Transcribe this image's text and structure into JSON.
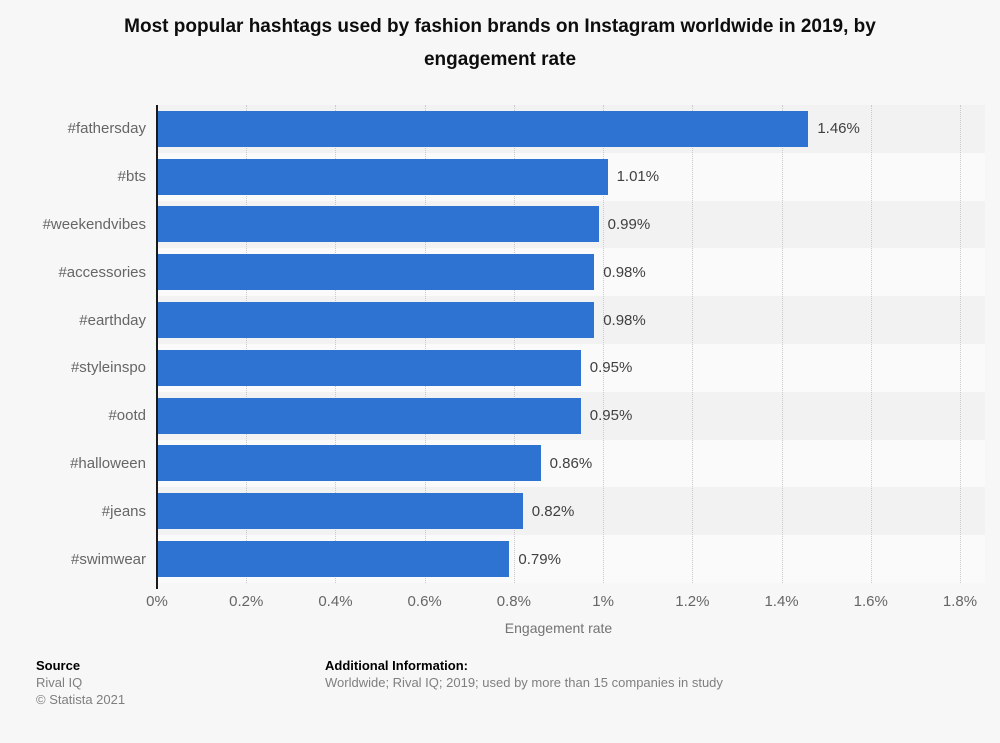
{
  "title_lines": [
    "Most popular hashtags used by fashion brands on Instagram worldwide in 2019, by",
    "engagement rate"
  ],
  "chart_data": {
    "type": "bar",
    "orientation": "horizontal",
    "title": "Most popular hashtags used by fashion brands on Instagram worldwide in 2019, by engagement rate",
    "categories": [
      "#fathersday",
      "#bts",
      "#weekendvibes",
      "#accessories",
      "#earthday",
      "#styleinspo",
      "#ootd",
      "#halloween",
      "#jeans",
      "#swimwear"
    ],
    "values": [
      1.46,
      1.01,
      0.99,
      0.98,
      0.98,
      0.95,
      0.95,
      0.86,
      0.82,
      0.79
    ],
    "value_labels": [
      "1.46%",
      "1.01%",
      "0.99%",
      "0.98%",
      "0.98%",
      "0.95%",
      "0.95%",
      "0.86%",
      "0.82%",
      "0.79%"
    ],
    "xlabel": "Engagement rate",
    "ylabel": "",
    "xlim": [
      0,
      1.8
    ],
    "x_tick_values": [
      0,
      0.2,
      0.4,
      0.6,
      0.8,
      1.0,
      1.2,
      1.4,
      1.6,
      1.8
    ],
    "x_tick_labels": [
      "0%",
      "0.2%",
      "0.4%",
      "0.6%",
      "0.8%",
      "1%",
      "1.2%",
      "1.4%",
      "1.6%",
      "1.8%"
    ],
    "grid": "vertical-dotted",
    "legend": "none",
    "bar_color": "#2e73d2"
  },
  "colors": {
    "background": "#f7f7f7",
    "bar": "#2e73d2",
    "stripe_dark": "#f2f2f3",
    "stripe_light": "#fafafa",
    "gridline": "#c9c9c9",
    "axis_line": "#1a1a1a",
    "category_label": "#666666",
    "value_label": "#404040"
  },
  "footer": {
    "source_heading": "Source",
    "source_name": "Rival IQ",
    "copyright": "© Statista 2021",
    "additional_heading": "Additional Information:",
    "additional_text": "Worldwide; Rival IQ; 2019; used by  more than 15 companies in study"
  }
}
